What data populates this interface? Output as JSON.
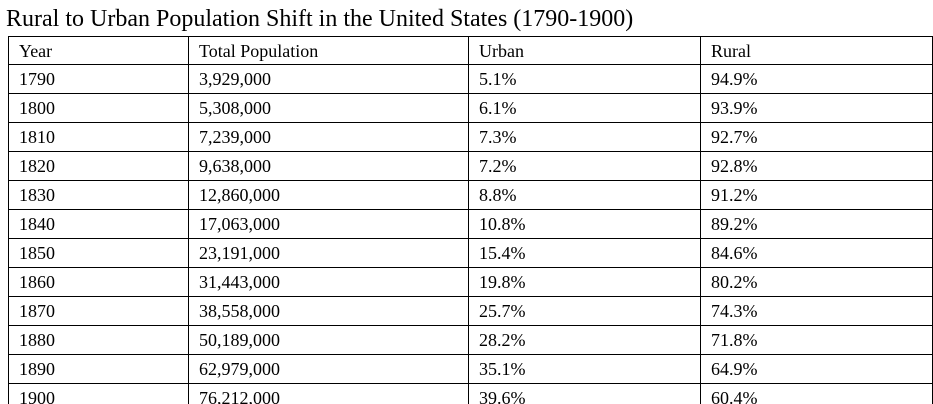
{
  "title": "Rural to Urban Population Shift in the United States (1790-1900)",
  "columns": [
    "Year",
    "Total Population",
    "Urban",
    "Rural"
  ],
  "rows": [
    [
      "1790",
      "3,929,000",
      "5.1%",
      "94.9%"
    ],
    [
      "1800",
      "5,308,000",
      "6.1%",
      "93.9%"
    ],
    [
      "1810",
      "7,239,000",
      "7.3%",
      "92.7%"
    ],
    [
      "1820",
      "9,638,000",
      "7.2%",
      "92.8%"
    ],
    [
      "1830",
      "12,860,000",
      "8.8%",
      "91.2%"
    ],
    [
      "1840",
      "17,063,000",
      "10.8%",
      "89.2%"
    ],
    [
      "1850",
      "23,191,000",
      "15.4%",
      "84.6%"
    ],
    [
      "1860",
      "31,443,000",
      "19.8%",
      "80.2%"
    ],
    [
      "1870",
      "38,558,000",
      "25.7%",
      "74.3%"
    ],
    [
      "1880",
      "50,189,000",
      "28.2%",
      "71.8%"
    ],
    [
      "1890",
      "62,979,000",
      "35.1%",
      "64.9%"
    ],
    [
      "1900",
      "76,212,000",
      "39.6%",
      "60.4%"
    ]
  ]
}
